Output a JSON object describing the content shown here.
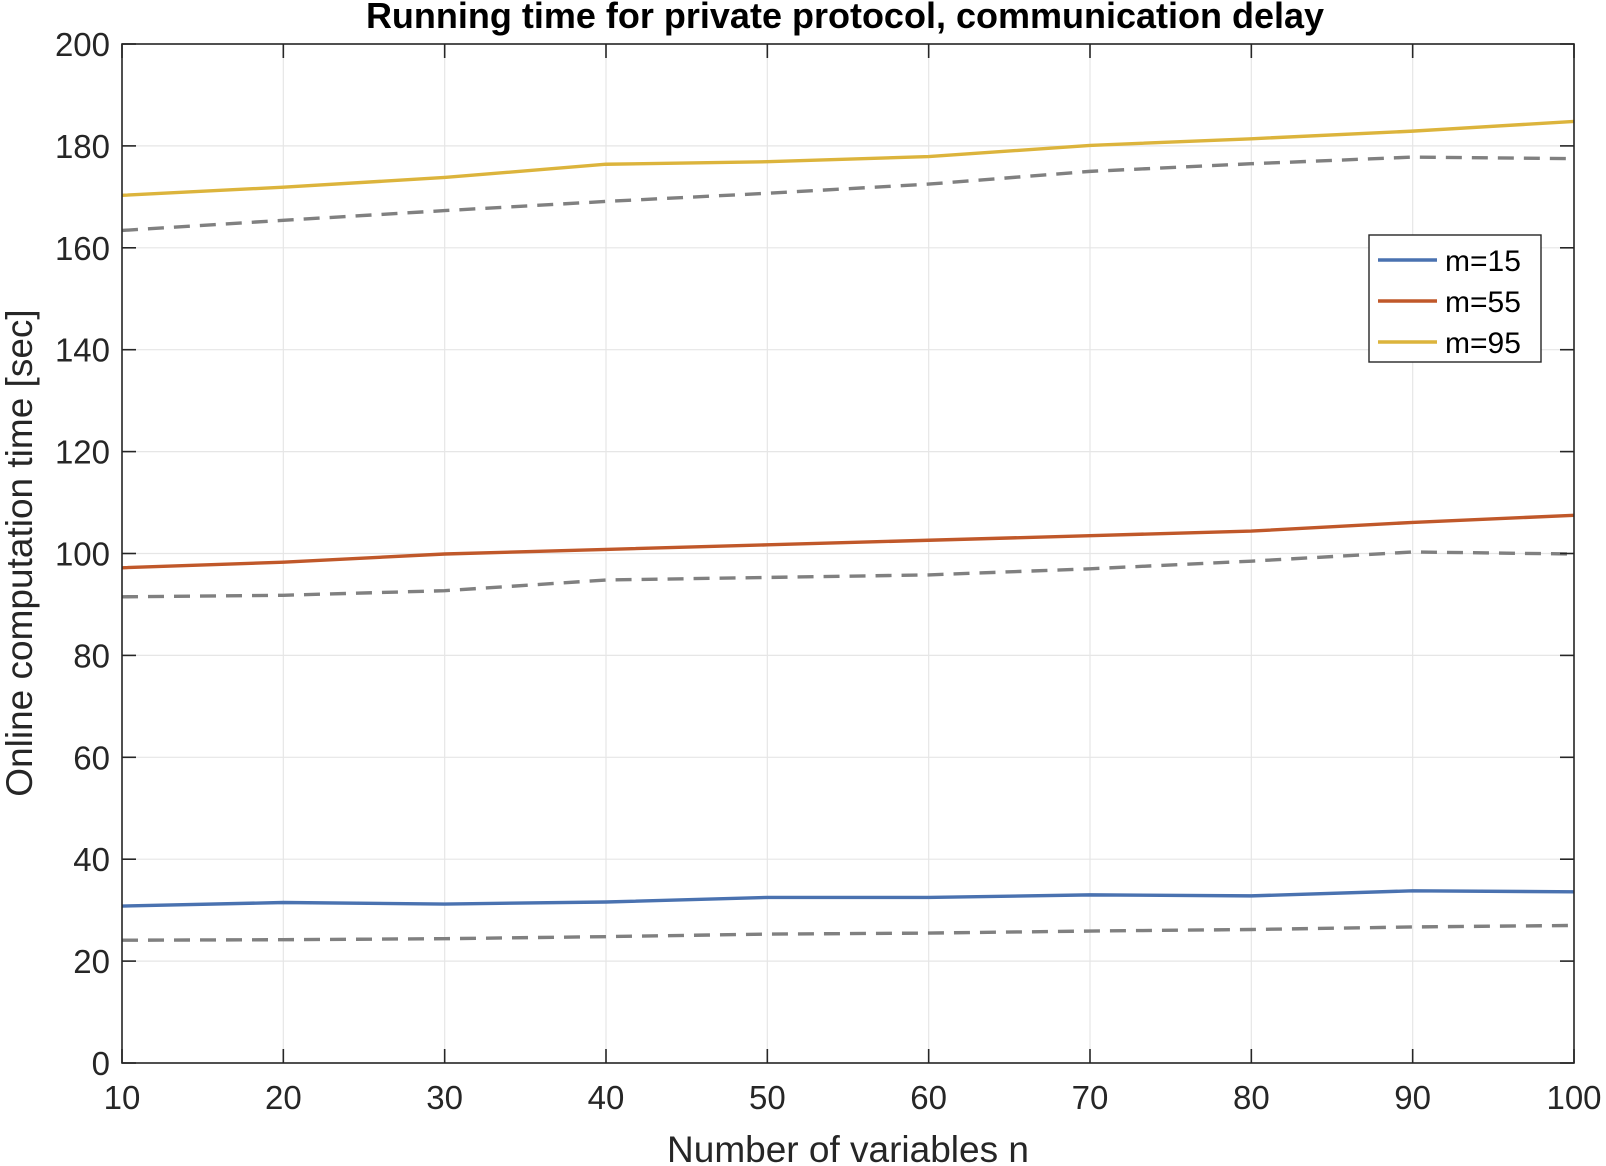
{
  "chart_data": {
    "type": "line",
    "title": "Running time for private protocol, communication delay",
    "xlabel": "Number of variables n",
    "ylabel": "Online computation time [sec]",
    "xlim": [
      10,
      100
    ],
    "ylim": [
      0,
      200
    ],
    "xticks": [
      10,
      20,
      30,
      40,
      50,
      60,
      70,
      80,
      90,
      100
    ],
    "yticks": [
      0,
      20,
      40,
      60,
      80,
      100,
      120,
      140,
      160,
      180,
      200
    ],
    "grid": true,
    "legend_position": "upper-right",
    "x": [
      10,
      20,
      30,
      40,
      50,
      60,
      70,
      80,
      90,
      100
    ],
    "series": [
      {
        "name": "m=15",
        "color": "#4a72b0",
        "style": "solid",
        "values": [
          30.8,
          31.5,
          31.2,
          31.6,
          32.5,
          32.5,
          33.0,
          32.8,
          33.8,
          33.6
        ]
      },
      {
        "name": "m=55",
        "color": "#c0582a",
        "style": "solid",
        "values": [
          97.2,
          98.3,
          99.9,
          100.8,
          101.7,
          102.6,
          103.5,
          104.4,
          106.1,
          107.5
        ]
      },
      {
        "name": "m=95",
        "color": "#dcb43c",
        "style": "solid",
        "values": [
          170.3,
          171.9,
          173.8,
          176.4,
          176.9,
          177.9,
          180.1,
          181.4,
          182.9,
          184.8
        ]
      },
      {
        "style": "dashed",
        "color": "#808080",
        "values": [
          24.1,
          24.2,
          24.4,
          24.8,
          25.3,
          25.5,
          25.9,
          26.2,
          26.7,
          27.0
        ]
      },
      {
        "style": "dashed",
        "color": "#808080",
        "values": [
          91.5,
          91.8,
          92.7,
          94.8,
          95.3,
          95.8,
          97.0,
          98.5,
          100.3,
          99.9
        ]
      },
      {
        "style": "dashed",
        "color": "#808080",
        "values": [
          163.4,
          165.4,
          167.3,
          169.1,
          170.7,
          172.5,
          175.0,
          176.5,
          177.8,
          177.5
        ]
      }
    ]
  }
}
